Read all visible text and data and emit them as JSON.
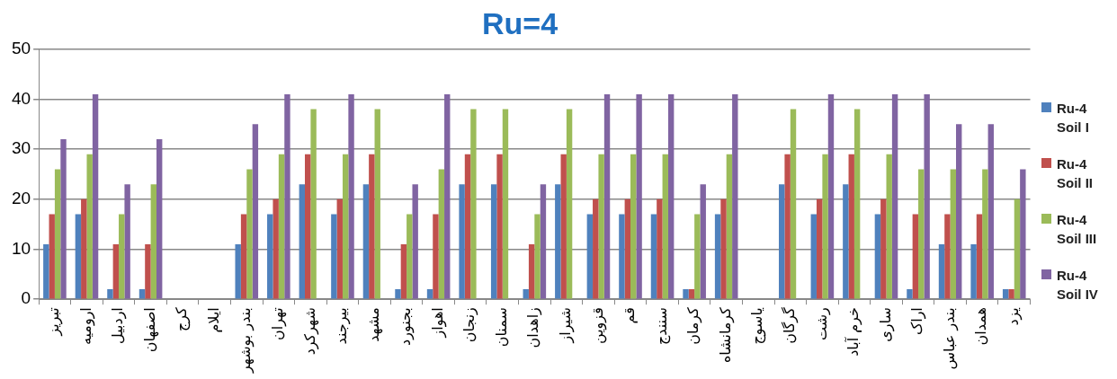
{
  "chart_data": {
    "type": "bar",
    "title": "Ru=4",
    "categories": [
      "تبریز",
      "ارومیه",
      "اردبیل",
      "اصفهان",
      "کرج",
      "ایلام",
      "بندر بوشهر",
      "تهران",
      "شهرکرد",
      "بیرجند",
      "مشهد",
      "بجنورد",
      "اهواز",
      "زنجان",
      "سمنان",
      "زاهدان",
      "شیراز",
      "قزوین",
      "قم",
      "سنندج",
      "کرمان",
      "کرمانشاه",
      "یاسوج",
      "گرگان",
      "رشت",
      "خرم آباد",
      "ساری",
      "اراک",
      "بندر عباس",
      "همدان",
      "یزد"
    ],
    "series": [
      {
        "name": "Ru-4 Soil I",
        "color": "#4f81bd",
        "values": [
          11,
          17,
          2,
          2,
          null,
          null,
          11,
          17,
          23,
          17,
          23,
          2,
          2,
          23,
          23,
          2,
          23,
          17,
          17,
          17,
          2,
          17,
          null,
          23,
          17,
          23,
          17,
          2,
          11,
          11,
          2
        ]
      },
      {
        "name": "Ru-4 Soil II",
        "color": "#c0504d",
        "values": [
          17,
          20,
          11,
          11,
          null,
          null,
          17,
          20,
          29,
          20,
          29,
          11,
          17,
          29,
          29,
          11,
          29,
          20,
          20,
          20,
          2,
          20,
          null,
          29,
          20,
          29,
          20,
          17,
          17,
          17,
          2
        ]
      },
      {
        "name": "Ru-4 Soil III",
        "color": "#9bbb59",
        "values": [
          26,
          29,
          17,
          23,
          null,
          null,
          26,
          29,
          38,
          29,
          38,
          17,
          26,
          38,
          38,
          17,
          38,
          29,
          29,
          29,
          17,
          29,
          null,
          38,
          29,
          38,
          29,
          26,
          26,
          26,
          20
        ]
      },
      {
        "name": "Ru-4 Soil IV",
        "color": "#8064a2",
        "values": [
          32,
          41,
          23,
          32,
          null,
          null,
          35,
          41,
          null,
          41,
          null,
          23,
          41,
          null,
          null,
          23,
          null,
          41,
          41,
          41,
          23,
          41,
          null,
          null,
          41,
          null,
          41,
          41,
          35,
          35,
          26
        ]
      }
    ],
    "ylim": [
      0,
      50
    ],
    "yticks": [
      0,
      10,
      20,
      30,
      40,
      50
    ],
    "grid": "y",
    "legend": "right"
  }
}
